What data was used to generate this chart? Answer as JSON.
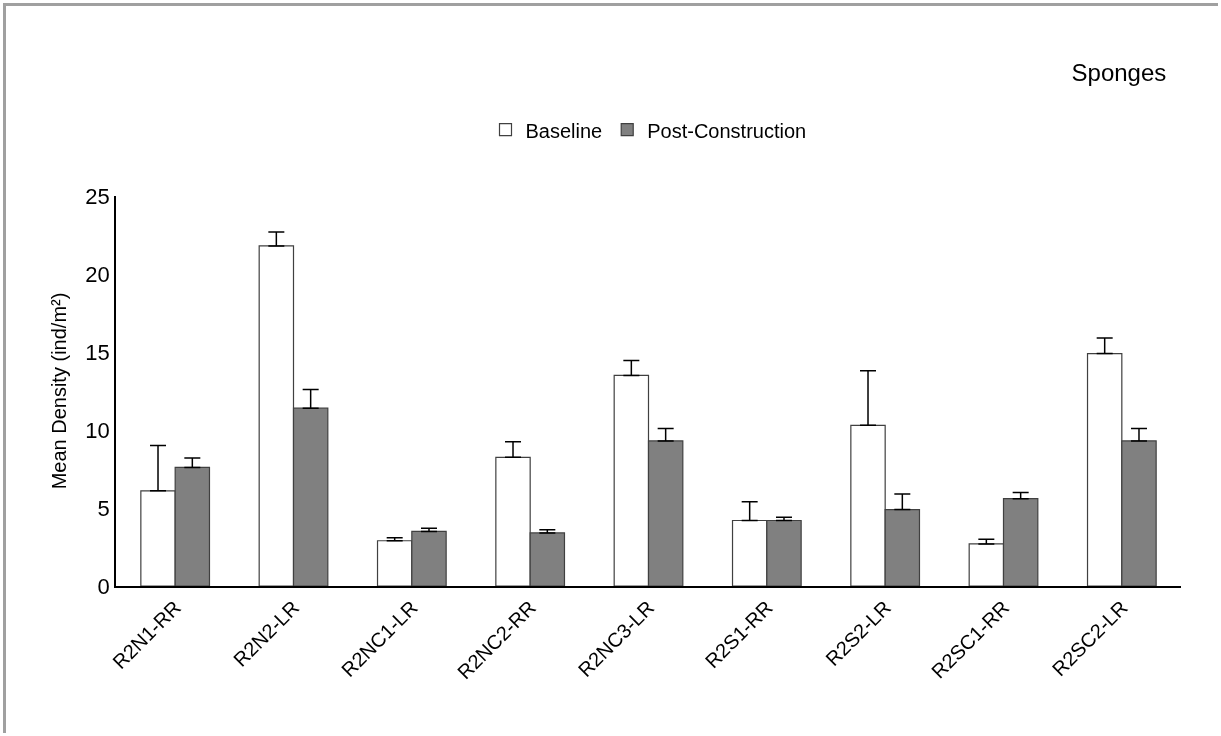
{
  "chart_data": {
    "type": "bar",
    "title": "Sponges",
    "ylabel": "Mean Density (ind/m²)",
    "categories": [
      "R2N1-RR",
      "R2N2-LR",
      "R2NC1-LR",
      "R2NC2-RR",
      "R2NC3-LR",
      "R2S1-RR",
      "R2S2-LR",
      "R2SC1-RR",
      "R2SC2-LR"
    ],
    "series": [
      {
        "name": "Baseline",
        "color": "#ffffff",
        "values": [
          6.1,
          21.8,
          2.9,
          8.25,
          13.5,
          4.2,
          10.3,
          2.7,
          14.9
        ],
        "errors": [
          [
            6.1,
            9.0
          ],
          [
            21.8,
            22.7
          ],
          [
            2.9,
            3.1
          ],
          [
            8.25,
            9.25
          ],
          [
            13.5,
            14.45
          ],
          [
            4.2,
            5.4
          ],
          [
            10.3,
            13.8
          ],
          [
            2.7,
            3.0
          ],
          [
            14.9,
            15.9
          ]
        ]
      },
      {
        "name": "Post-Construction",
        "color": "#808080",
        "values": [
          7.6,
          11.4,
          3.5,
          3.4,
          9.3,
          4.2,
          4.9,
          5.6,
          9.3
        ],
        "errors": [
          [
            7.6,
            8.2
          ],
          [
            11.4,
            12.6
          ],
          [
            3.5,
            3.7
          ],
          [
            3.4,
            3.6
          ],
          [
            9.3,
            10.1
          ],
          [
            4.2,
            4.4
          ],
          [
            4.9,
            5.9
          ],
          [
            5.6,
            6.0
          ],
          [
            9.3,
            10.1
          ]
        ]
      }
    ],
    "ylim": [
      0,
      25
    ],
    "yticks": [
      0,
      5,
      10,
      15,
      20,
      25
    ],
    "grid": false,
    "legend": "top"
  }
}
